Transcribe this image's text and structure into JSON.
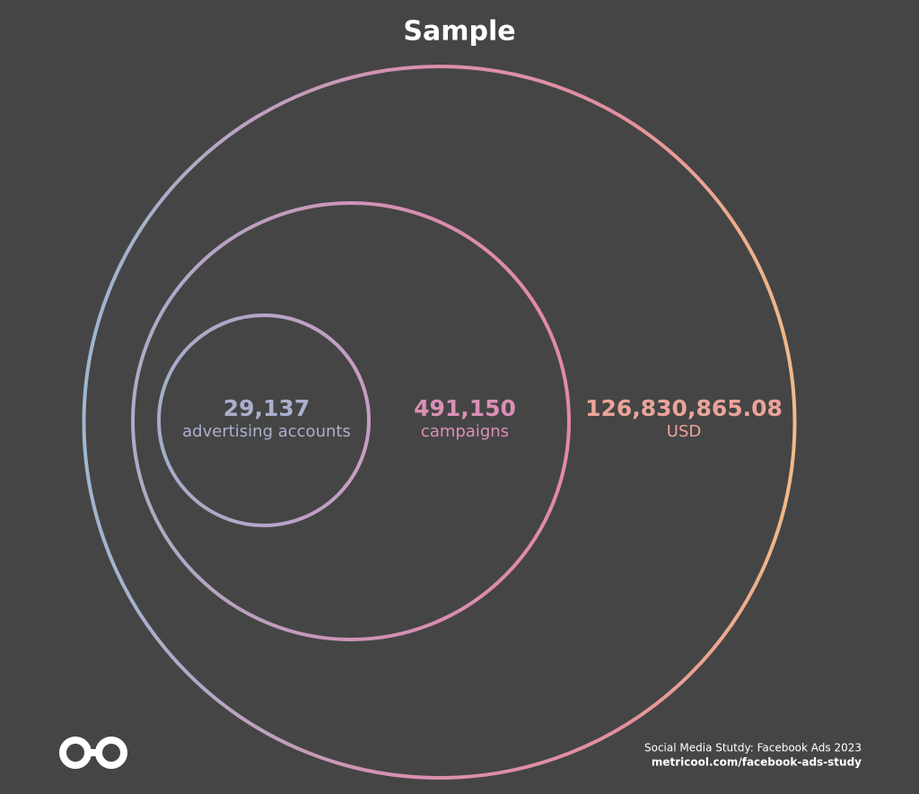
{
  "title": "Sample",
  "items": [
    {
      "value": "29,137",
      "label": "advertising accounts"
    },
    {
      "value": "491,150",
      "label": "campaigns"
    },
    {
      "value": "126,830,865.08",
      "label": "USD"
    }
  ],
  "footer": {
    "line1": "Social Media Stutdy: Facebook Ads 2023",
    "line2": "metricool.com/facebook-ads-study"
  }
}
